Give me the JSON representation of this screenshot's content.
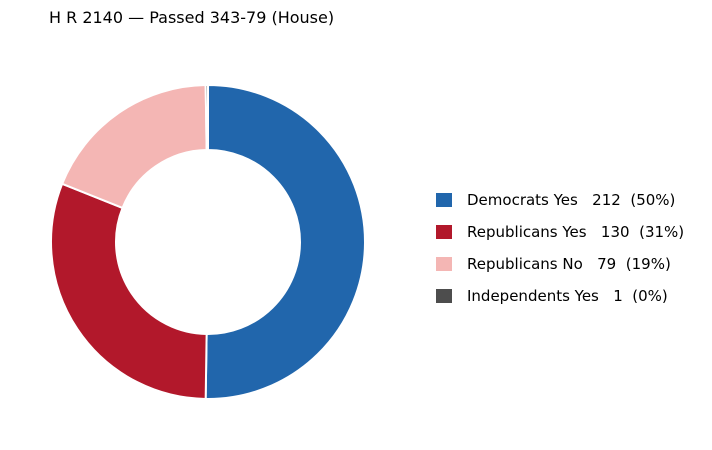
{
  "chart_data": {
    "type": "pie",
    "title": "H R 2140 — Passed 343-79 (House)",
    "donut": true,
    "legend_position": "right",
    "slices": [
      {
        "label": "Democrats Yes",
        "value": 212,
        "percent_label": "(50%)",
        "color": "#2166ac"
      },
      {
        "label": "Republicans Yes",
        "value": 130,
        "percent_label": "(31%)",
        "color": "#b2182b"
      },
      {
        "label": "Republicans No",
        "value": 79,
        "percent_label": "(19%)",
        "color": "#f4b6b4"
      },
      {
        "label": "Independents Yes",
        "value": 1,
        "percent_label": "(0%)",
        "color": "#4d4d4d"
      }
    ]
  }
}
